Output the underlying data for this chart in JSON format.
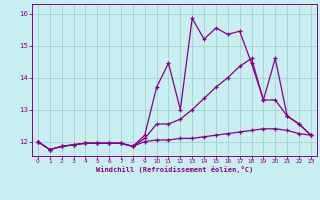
{
  "xlabel": "Windchill (Refroidissement éolien,°C)",
  "ylabel": "",
  "background_color": "#c8eef0",
  "grid_color": "#9ecece",
  "line_color": "#880088",
  "xlim": [
    -0.5,
    23.5
  ],
  "ylim": [
    11.55,
    16.3
  ],
  "xticks": [
    0,
    1,
    2,
    3,
    4,
    5,
    6,
    7,
    8,
    9,
    10,
    11,
    12,
    13,
    14,
    15,
    16,
    17,
    18,
    19,
    20,
    21,
    22,
    23
  ],
  "yticks": [
    12,
    13,
    14,
    15,
    16
  ],
  "line1_x": [
    0,
    1,
    2,
    3,
    4,
    5,
    6,
    7,
    8,
    9,
    10,
    11,
    12,
    13,
    14,
    15,
    16,
    17,
    18,
    19,
    20,
    21,
    22,
    23
  ],
  "line1_y": [
    12.0,
    11.75,
    11.85,
    11.9,
    11.95,
    11.95,
    11.95,
    11.95,
    11.85,
    12.0,
    12.05,
    12.05,
    12.1,
    12.1,
    12.15,
    12.2,
    12.25,
    12.3,
    12.35,
    12.4,
    12.4,
    12.35,
    12.25,
    12.2
  ],
  "line2_x": [
    0,
    1,
    2,
    3,
    4,
    5,
    6,
    7,
    8,
    9,
    10,
    11,
    12,
    13,
    14,
    15,
    16,
    17,
    18,
    19,
    20,
    21,
    22,
    23
  ],
  "line2_y": [
    12.0,
    11.75,
    11.85,
    11.9,
    11.95,
    11.95,
    11.95,
    11.95,
    11.85,
    12.1,
    12.55,
    12.55,
    12.7,
    13.0,
    13.35,
    13.7,
    14.0,
    14.35,
    14.6,
    13.3,
    13.3,
    12.8,
    12.55,
    12.2
  ],
  "line3_x": [
    0,
    1,
    2,
    3,
    4,
    5,
    6,
    7,
    8,
    9,
    10,
    11,
    12,
    13,
    14,
    15,
    16,
    17,
    18,
    19,
    20,
    21,
    22,
    23
  ],
  "line3_y": [
    12.0,
    11.75,
    11.85,
    11.9,
    11.95,
    11.95,
    11.95,
    11.95,
    11.85,
    12.2,
    13.7,
    14.45,
    13.0,
    15.85,
    15.2,
    15.55,
    15.35,
    15.45,
    14.45,
    13.3,
    14.6,
    12.8,
    12.55,
    12.2
  ]
}
